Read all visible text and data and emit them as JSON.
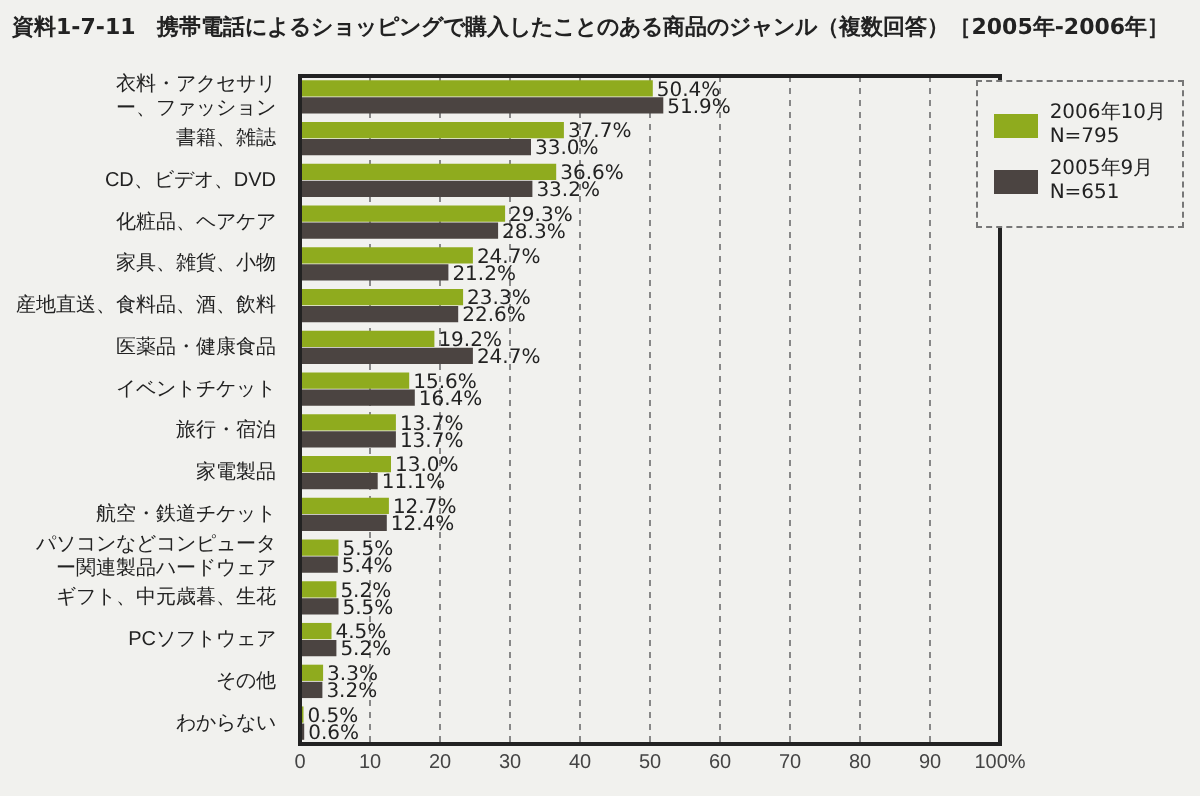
{
  "chart_data": {
    "type": "bar",
    "orientation": "horizontal",
    "title": "資料1-7-11　携帯電話によるショッピングで購入したことのある商品のジャンル（複数回答）［2005年-2006年］",
    "categories": [
      "衣料・アクセサリー、ファッション",
      "書籍、雑誌",
      "CD、ビデオ、DVD",
      "化粧品、ヘアケア",
      "家具、雑貨、小物",
      "産地直送、食料品、酒、飲料",
      "医薬品・健康食品",
      "イベントチケット",
      "旅行・宿泊",
      "家電製品",
      "航空・鉄道チケット",
      "パソコンなどコンピューター関連製品ハードウェア",
      "ギフト、中元歳暮、生花",
      "PCソフトウェア",
      "その他",
      "わからない"
    ],
    "series": [
      {
        "name": "2006年10月\nN=795",
        "color": "#8fab1e",
        "values": [
          50.4,
          37.7,
          36.6,
          29.3,
          24.7,
          23.3,
          19.2,
          15.6,
          13.7,
          13.0,
          12.7,
          5.5,
          5.2,
          4.5,
          3.3,
          0.5
        ],
        "value_labels": [
          "50.4%",
          "37.7%",
          "36.6%",
          "29.3%",
          "24.7%",
          "23.3%",
          "19.2%",
          "15.6%",
          "13.7%",
          "13.0%",
          "12.7%",
          "5.5%",
          "5.2%",
          "4.5%",
          "3.3%",
          "0.5%"
        ]
      },
      {
        "name": "2005年9月\nN=651",
        "color": "#4b4441",
        "values": [
          51.9,
          33.0,
          33.2,
          28.3,
          21.2,
          22.6,
          24.7,
          16.4,
          13.7,
          11.1,
          12.4,
          5.4,
          5.5,
          5.2,
          3.2,
          0.6
        ],
        "value_labels": [
          "51.9%",
          "33.0%",
          "33.2%",
          "28.3%",
          "21.2%",
          "22.6%",
          "24.7%",
          "16.4%",
          "13.7%",
          "11.1%",
          "12.4%",
          "5.4%",
          "5.5%",
          "5.2%",
          "3.2%",
          "0.6%"
        ]
      }
    ],
    "xlim": [
      0,
      100
    ],
    "xticks": [
      0,
      10,
      20,
      30,
      40,
      50,
      60,
      70,
      80,
      90,
      {
        "value": 100,
        "label": "100%"
      }
    ],
    "grid": "x",
    "legend": "top right"
  }
}
